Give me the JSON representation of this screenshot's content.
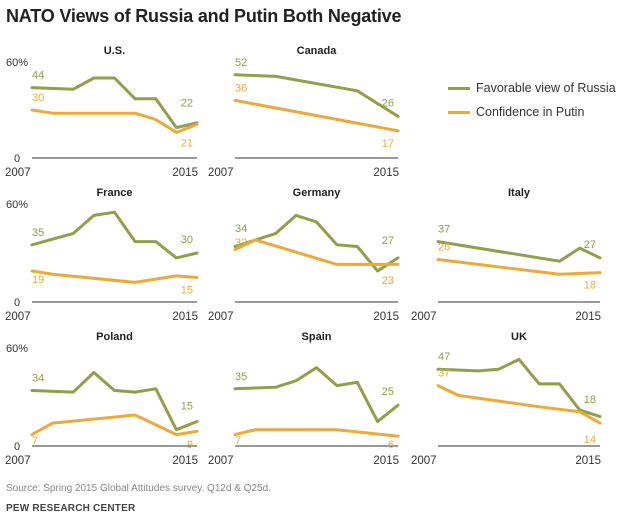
{
  "title": "NATO Views of Russia and Putin Both Negative",
  "legend": {
    "favorable": "Favorable view of Russia",
    "confidence": "Confidence in Putin"
  },
  "colors": {
    "favorable": "#8ea04a",
    "confidence": "#ecaa3a",
    "axis": "#333333"
  },
  "axis_labels": {
    "y_top": "60%",
    "y_zero": "0",
    "x_start": "2007",
    "x_end": "2015"
  },
  "source": "Source: Spring 2015 Global Attitudes survey. Q12d & Q25d.",
  "org": "PEW RESEARCH CENTER",
  "chart_data": [
    {
      "type": "line",
      "title": "U.S.",
      "ylim": [
        0,
        60
      ],
      "xlim": [
        2007,
        2015
      ],
      "series": [
        {
          "name": "Favorable view of Russia",
          "x": [
            2007,
            2009,
            2010,
            2011,
            2012,
            2013,
            2014,
            2015
          ],
          "values": [
            44,
            43,
            50,
            50,
            37,
            37,
            19,
            22
          ]
        },
        {
          "name": "Confidence in Putin",
          "x": [
            2007,
            2008,
            2009,
            2010,
            2011,
            2012,
            2013,
            2014,
            2015
          ],
          "values": [
            30,
            28,
            28,
            28,
            28,
            28,
            24,
            16,
            21
          ]
        }
      ],
      "start_labels": [
        "44",
        "30"
      ],
      "end_labels": [
        "22",
        "21"
      ]
    },
    {
      "type": "line",
      "title": "Canada",
      "ylim": [
        0,
        60
      ],
      "xlim": [
        2007,
        2015
      ],
      "series": [
        {
          "name": "Favorable view of Russia",
          "x": [
            2007,
            2009,
            2013,
            2015
          ],
          "values": [
            52,
            51,
            42,
            26
          ]
        },
        {
          "name": "Confidence in Putin",
          "x": [
            2007,
            2015
          ],
          "values": [
            36,
            17
          ]
        }
      ],
      "start_labels": [
        "52",
        "36"
      ],
      "end_labels": [
        "26",
        "17"
      ]
    },
    {
      "type": "line",
      "title": "France",
      "ylim": [
        0,
        60
      ],
      "xlim": [
        2007,
        2015
      ],
      "series": [
        {
          "name": "Favorable view of Russia",
          "x": [
            2007,
            2009,
            2010,
            2011,
            2012,
            2013,
            2014,
            2015
          ],
          "values": [
            35,
            42,
            53,
            55,
            37,
            37,
            27,
            30
          ]
        },
        {
          "name": "Confidence in Putin",
          "x": [
            2007,
            2008,
            2012,
            2014,
            2015
          ],
          "values": [
            19,
            17,
            12,
            16,
            15
          ]
        }
      ],
      "start_labels": [
        "35",
        "19"
      ],
      "end_labels": [
        "30",
        "15"
      ]
    },
    {
      "type": "line",
      "title": "Germany",
      "ylim": [
        0,
        60
      ],
      "xlim": [
        2007,
        2015
      ],
      "series": [
        {
          "name": "Favorable view of Russia",
          "x": [
            2007,
            2009,
            2010,
            2011,
            2012,
            2013,
            2014,
            2015
          ],
          "values": [
            34,
            42,
            53,
            49,
            35,
            34,
            19,
            27
          ]
        },
        {
          "name": "Confidence in Putin",
          "x": [
            2007,
            2008,
            2012,
            2013,
            2014,
            2015
          ],
          "values": [
            32,
            38,
            23,
            23,
            23,
            23
          ]
        }
      ],
      "start_labels": [
        "34",
        "32"
      ],
      "end_labels": [
        "27",
        "23"
      ]
    },
    {
      "type": "line",
      "title": "Italy",
      "ylim": [
        0,
        60
      ],
      "xlim": [
        2007,
        2015
      ],
      "series": [
        {
          "name": "Favorable view of Russia",
          "x": [
            2007,
            2013,
            2014,
            2015
          ],
          "values": [
            37,
            25,
            33,
            27
          ]
        },
        {
          "name": "Confidence in Putin",
          "x": [
            2007,
            2013,
            2015
          ],
          "values": [
            26,
            17,
            18
          ]
        }
      ],
      "start_labels": [
        "37",
        "26"
      ],
      "end_labels": [
        "27",
        "18"
      ]
    },
    {
      "type": "line",
      "title": "Poland",
      "ylim": [
        0,
        60
      ],
      "xlim": [
        2007,
        2015
      ],
      "series": [
        {
          "name": "Favorable view of Russia",
          "x": [
            2007,
            2009,
            2010,
            2011,
            2012,
            2013,
            2014,
            2015
          ],
          "values": [
            34,
            33,
            45,
            34,
            33,
            35,
            10,
            15
          ]
        },
        {
          "name": "Confidence in Putin",
          "x": [
            2007,
            2008,
            2012,
            2014,
            2015
          ],
          "values": [
            7,
            14,
            19,
            7,
            9
          ]
        }
      ],
      "start_labels": [
        "34",
        "7"
      ],
      "end_labels": [
        "15",
        "9"
      ]
    },
    {
      "type": "line",
      "title": "Spain",
      "ylim": [
        0,
        60
      ],
      "xlim": [
        2007,
        2015
      ],
      "series": [
        {
          "name": "Favorable view of Russia",
          "x": [
            2007,
            2009,
            2010,
            2011,
            2012,
            2013,
            2014,
            2015
          ],
          "values": [
            35,
            36,
            40,
            48,
            37,
            39,
            15,
            25
          ]
        },
        {
          "name": "Confidence in Putin",
          "x": [
            2007,
            2008,
            2012,
            2015
          ],
          "values": [
            7,
            10,
            10,
            6
          ]
        }
      ],
      "start_labels": [
        "35",
        "7"
      ],
      "end_labels": [
        "25",
        "6"
      ]
    },
    {
      "type": "line",
      "title": "UK",
      "ylim": [
        0,
        60
      ],
      "xlim": [
        2007,
        2015
      ],
      "series": [
        {
          "name": "Favorable view of Russia",
          "x": [
            2007,
            2009,
            2010,
            2011,
            2012,
            2013,
            2014,
            2015
          ],
          "values": [
            47,
            46,
            47,
            53,
            38,
            38,
            22,
            18
          ]
        },
        {
          "name": "Confidence in Putin",
          "x": [
            2007,
            2008,
            2012,
            2014,
            2015
          ],
          "values": [
            37,
            31,
            24,
            21,
            14
          ]
        }
      ],
      "start_labels": [
        "47",
        "37"
      ],
      "end_labels": [
        "18",
        "14"
      ]
    }
  ]
}
